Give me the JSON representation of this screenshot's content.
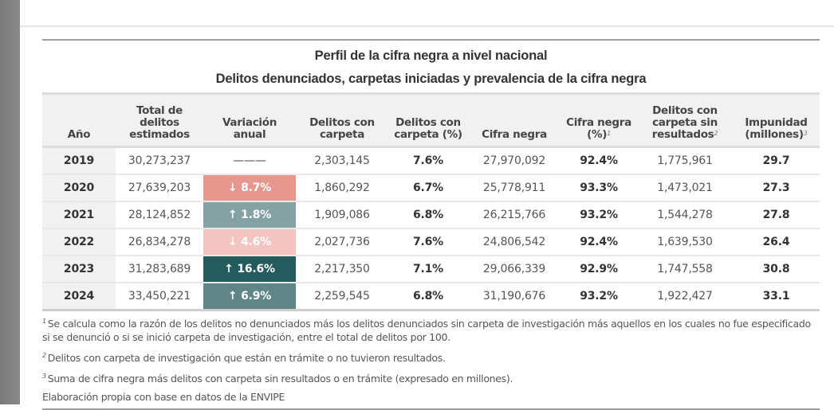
{
  "title": "Perfil de la cifra negra a nivel nacional",
  "subtitle": "Delitos denunciados, carpetas iniciadas y prevalencia de la cifra negra",
  "columns": [
    {
      "label": "Año",
      "sup": ""
    },
    {
      "label": "Total de delitos estimados",
      "sup": ""
    },
    {
      "label": "Variación anual",
      "sup": ""
    },
    {
      "label": "Delitos con carpeta",
      "sup": ""
    },
    {
      "label": "Delitos con carpeta (%)",
      "sup": ""
    },
    {
      "label": "Cifra negra",
      "sup": ""
    },
    {
      "label": "Cifra negra (%)",
      "sup": "1"
    },
    {
      "label": "Delitos con carpeta sin resultados",
      "sup": "2"
    },
    {
      "label": "Impunidad (millones)",
      "sup": "3"
    }
  ],
  "variation_colors": {
    "strong_decrease": "#e8978e",
    "mild_decrease": "#f3c4c0",
    "mild_increase": "#84a2a4",
    "moderate_increase": "#5f8587",
    "strong_increase": "#245b5e"
  },
  "rows": [
    {
      "year": "2019",
      "total": "30,273,237",
      "variation": "———",
      "variation_direction": "none",
      "variation_color": "",
      "con_carpeta": "2,303,145",
      "con_carpeta_pct": "7.6%",
      "cifra_negra": "27,970,092",
      "cifra_negra_pct": "92.4%",
      "sin_resultados": "1,775,961",
      "impunidad": "29.7"
    },
    {
      "year": "2020",
      "total": "27,639,203",
      "variation": "↓ 8.7%",
      "variation_direction": "down",
      "variation_color": "#e8978e",
      "con_carpeta": "1,860,292",
      "con_carpeta_pct": "6.7%",
      "cifra_negra": "25,778,911",
      "cifra_negra_pct": "93.3%",
      "sin_resultados": "1,473,021",
      "impunidad": "27.3"
    },
    {
      "year": "2021",
      "total": "28,124,852",
      "variation": "↑ 1.8%",
      "variation_direction": "up",
      "variation_color": "#84a2a4",
      "con_carpeta": "1,909,086",
      "con_carpeta_pct": "6.8%",
      "cifra_negra": "26,215,766",
      "cifra_negra_pct": "93.2%",
      "sin_resultados": "1,544,278",
      "impunidad": "27.8"
    },
    {
      "year": "2022",
      "total": "26,834,278",
      "variation": "↓ 4.6%",
      "variation_direction": "down",
      "variation_color": "#f3c4c0",
      "con_carpeta": "2,027,736",
      "con_carpeta_pct": "7.6%",
      "cifra_negra": "24,806,542",
      "cifra_negra_pct": "92.4%",
      "sin_resultados": "1,639,530",
      "impunidad": "26.4"
    },
    {
      "year": "2023",
      "total": "31,283,689",
      "variation": "↑ 16.6%",
      "variation_direction": "up",
      "variation_color": "#245b5e",
      "con_carpeta": "2,217,350",
      "con_carpeta_pct": "7.1%",
      "cifra_negra": "29,066,339",
      "cifra_negra_pct": "92.9%",
      "sin_resultados": "1,747,558",
      "impunidad": "30.8"
    },
    {
      "year": "2024",
      "total": "33,450,221",
      "variation": "↑ 6.9%",
      "variation_direction": "up",
      "variation_color": "#5f8587",
      "con_carpeta": "2,259,545",
      "con_carpeta_pct": "6.8%",
      "cifra_negra": "31,190,676",
      "cifra_negra_pct": "93.2%",
      "sin_resultados": "1,922,427",
      "impunidad": "33.1"
    }
  ],
  "notes": [
    {
      "sup": "1",
      "text": "Se calcula como la razón de los delitos no denunciados más los delitos denunciados sin carpeta de investigación más aquellos en los cuales no fue especificado si se denunció o si se inició carpeta de investigación, entre el total de delitos por 100."
    },
    {
      "sup": "2",
      "text": "Delitos con carpeta de investigación que están en trámite o no tuvieron resultados."
    },
    {
      "sup": "3",
      "text": "Suma de cifra negra más delitos con carpeta sin resultados o en trámite (expresado en millones)."
    }
  ],
  "source": "Elaboración propia con base en datos de la ENVIPE"
}
